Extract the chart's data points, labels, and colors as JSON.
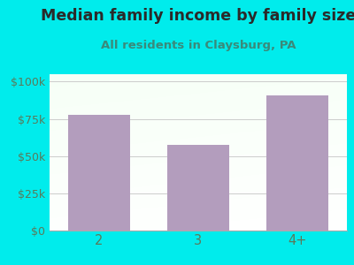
{
  "categories": [
    "2",
    "3",
    "4+"
  ],
  "values": [
    78000,
    57500,
    91000
  ],
  "bar_color": "#b39dbd",
  "title": "Median family income by family size",
  "subtitle": "All residents in Claysburg, PA",
  "ylabel_ticks": [
    0,
    25000,
    50000,
    75000,
    100000
  ],
  "ylabel_labels": [
    "$0",
    "$25k",
    "$50k",
    "$75k",
    "$100k"
  ],
  "ylim": [
    0,
    105000
  ],
  "bg_color": "#00ecec",
  "title_color": "#2a2a2a",
  "subtitle_color": "#3a8a7a",
  "tick_color": "#5a7a5a",
  "title_fontsize": 12.5,
  "subtitle_fontsize": 9.5,
  "bar_width": 0.62
}
